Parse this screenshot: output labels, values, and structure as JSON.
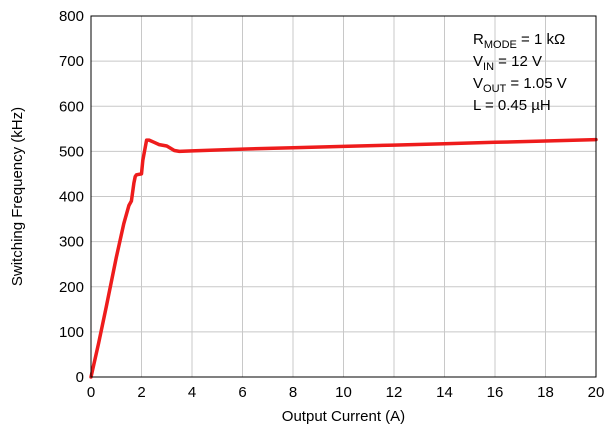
{
  "chart_data": {
    "type": "line",
    "title": "",
    "xlabel": "Output Current  (A)",
    "ylabel": "Switching Frequency (kHz)",
    "xlim": [
      0,
      20
    ],
    "ylim": [
      0,
      800
    ],
    "xticks": [
      0,
      2,
      4,
      6,
      8,
      10,
      12,
      14,
      16,
      18,
      20
    ],
    "yticks": [
      0,
      100,
      200,
      300,
      400,
      500,
      600,
      700,
      800
    ],
    "grid": true,
    "legend": "none",
    "series": [
      {
        "color": "#ee1c1c",
        "x": [
          0,
          0.3,
          0.6,
          1.0,
          1.3,
          1.5,
          1.6,
          1.7,
          1.75,
          1.8,
          2.0,
          2.05,
          2.2,
          2.3,
          2.5,
          2.7,
          3.0,
          3.3,
          3.5,
          4.0,
          5.0,
          6.0,
          8.0,
          10.0,
          12.0,
          14.0,
          16.0,
          18.0,
          20.0
        ],
        "y": [
          0,
          75,
          155,
          265,
          340,
          380,
          390,
          430,
          444,
          448,
          450,
          480,
          525,
          525,
          520,
          515,
          512,
          502,
          500,
          501,
          503,
          505,
          508,
          511,
          514,
          517,
          520,
          523,
          526
        ]
      }
    ],
    "annotations": [
      {
        "base": "R",
        "sub": "MODE",
        "rest": " = 1 kΩ"
      },
      {
        "base": "V",
        "sub": "IN",
        "rest": " = 12 V"
      },
      {
        "base": "V",
        "sub": "OUT",
        "rest": " = 1.05 V"
      },
      {
        "base": "L = 0.45 µH",
        "sub": "",
        "rest": ""
      }
    ]
  }
}
